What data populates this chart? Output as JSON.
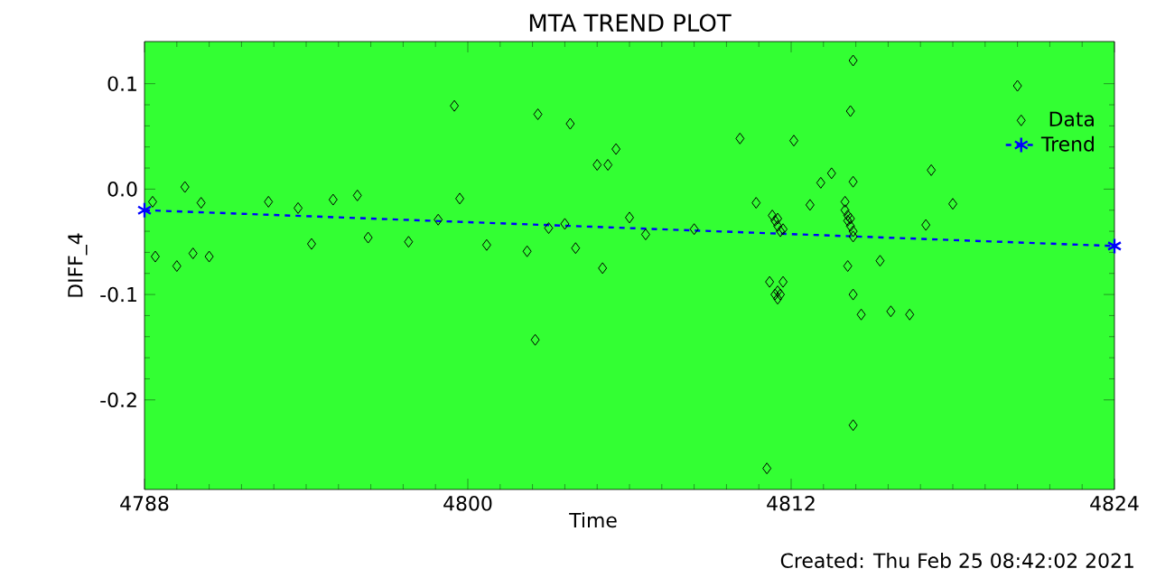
{
  "chart_data": {
    "type": "scatter",
    "title": "MTA TREND PLOT",
    "xlabel": "Time",
    "ylabel": "DIFF_4",
    "annotations": [
      "Created: Thu Feb 25 08:42:02 2021"
    ],
    "xlim": [
      4788,
      4824
    ],
    "ylim": [
      -0.285,
      0.14
    ],
    "xticks": [
      4788,
      4800,
      4812,
      4824
    ],
    "yticks": [
      -0.2,
      -0.1,
      {
        "value": 0,
        "label": "0.0"
      },
      0.1
    ],
    "legend": "top right",
    "grid": false,
    "series": [
      {
        "name": "Data",
        "marker": "diamond",
        "color": "#000000",
        "x": [
          4788.3,
          4788.4,
          4789.2,
          4789.5,
          4789.8,
          4790.1,
          4790.4,
          4792.6,
          4793.7,
          4794.2,
          4795.0,
          4795.9,
          4796.3,
          4797.8,
          4798.9,
          4799.5,
          4799.7,
          4800.7,
          4802.2,
          4802.5,
          4802.6,
          4803.0,
          4803.6,
          4803.8,
          4804.0,
          4804.8,
          4805.0,
          4805.2,
          4805.5,
          4806.0,
          4806.6,
          4808.4,
          4810.1,
          4810.7,
          4811.1,
          4811.2,
          4811.3,
          4811.4,
          4811.4,
          4811.5,
          4811.5,
          4811.5,
          4811.5,
          4811.6,
          4811.6,
          4811.7,
          4811.7,
          4812.1,
          4812.7,
          4813.1,
          4813.5,
          4814.0,
          4814.0,
          4814.1,
          4814.1,
          4814.1,
          4814.2,
          4814.2,
          4814.2,
          4814.3,
          4814.3,
          4814.3,
          4814.3,
          4814.3,
          4814.3,
          4814.6,
          4815.3,
          4815.7,
          4816.4,
          4817.0,
          4817.2,
          4818.0,
          4820.4
        ],
        "values": [
          -0.012,
          -0.064,
          -0.073,
          0.002,
          -0.061,
          -0.013,
          -0.064,
          -0.012,
          -0.018,
          -0.052,
          -0.01,
          -0.006,
          -0.046,
          -0.05,
          -0.029,
          0.079,
          -0.009,
          -0.053,
          -0.059,
          -0.143,
          0.071,
          -0.037,
          -0.033,
          0.062,
          -0.056,
          0.023,
          -0.075,
          0.023,
          0.038,
          -0.027,
          -0.043,
          -0.038,
          0.048,
          -0.013,
          -0.265,
          -0.088,
          -0.025,
          -0.03,
          -0.1,
          -0.035,
          -0.028,
          -0.104,
          -0.097,
          -0.04,
          -0.1,
          -0.038,
          -0.088,
          0.046,
          -0.015,
          0.006,
          0.015,
          -0.012,
          -0.02,
          -0.025,
          -0.03,
          -0.073,
          -0.035,
          -0.028,
          0.074,
          -0.04,
          -0.045,
          0.007,
          0.122,
          -0.1,
          -0.224,
          -0.119,
          -0.068,
          -0.116,
          -0.119,
          -0.034,
          0.018,
          -0.014,
          0.098
        ]
      },
      {
        "name": "Trend",
        "type": "line",
        "marker": "cross",
        "line_style": "dashed",
        "color": "#0000ff",
        "x": [
          4788,
          4824
        ],
        "values": [
          -0.02,
          -0.054
        ]
      }
    ]
  }
}
